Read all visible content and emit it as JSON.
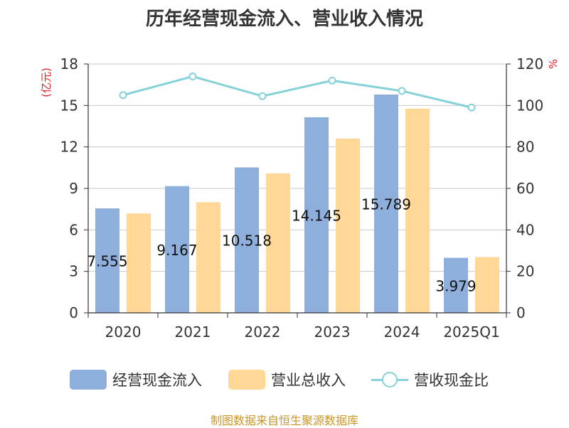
{
  "title": "历年经营现金流入、营业收入情况",
  "footer": "制图数据来自恒生聚源数据库",
  "colors": {
    "cash_inflow": "#8eaedb",
    "revenue": "#ffd898",
    "ratio": "#86d2d8",
    "axis_left_unit": "#dd2222",
    "axis_right_unit": "#dd2222",
    "grid": "#c8c8c8",
    "axis": "#333333"
  },
  "chart_data": {
    "type": "bar",
    "title": "历年经营现金流入、营业收入情况",
    "categories": [
      "2020",
      "2021",
      "2022",
      "2023",
      "2024",
      "2025Q1"
    ],
    "y_left": {
      "unit": "(亿元)",
      "range": [
        0,
        18
      ],
      "ticks": [
        "0",
        "3",
        "6",
        "9",
        "12",
        "15",
        "18"
      ]
    },
    "y_right": {
      "unit": "%",
      "range": [
        0,
        120
      ],
      "ticks": [
        "0",
        "20",
        "40",
        "60",
        "80",
        "100",
        "120"
      ]
    },
    "grid": true,
    "legend_position": "bottom",
    "series": [
      {
        "name": "经营现金流入",
        "type": "bar",
        "axis": "left",
        "values": [
          7.555,
          9.167,
          10.518,
          14.145,
          15.789,
          3.979
        ],
        "labels": [
          "7.555",
          "9.167",
          "10.518",
          "14.145",
          "15.789",
          "3.979"
        ]
      },
      {
        "name": "营业总收入",
        "type": "bar",
        "axis": "left",
        "values": [
          7.19,
          8.0,
          10.08,
          12.6,
          14.77,
          4.03
        ]
      },
      {
        "name": "营收现金比",
        "type": "line",
        "axis": "right",
        "values": [
          105,
          114,
          104.5,
          112,
          107,
          99
        ]
      }
    ]
  }
}
